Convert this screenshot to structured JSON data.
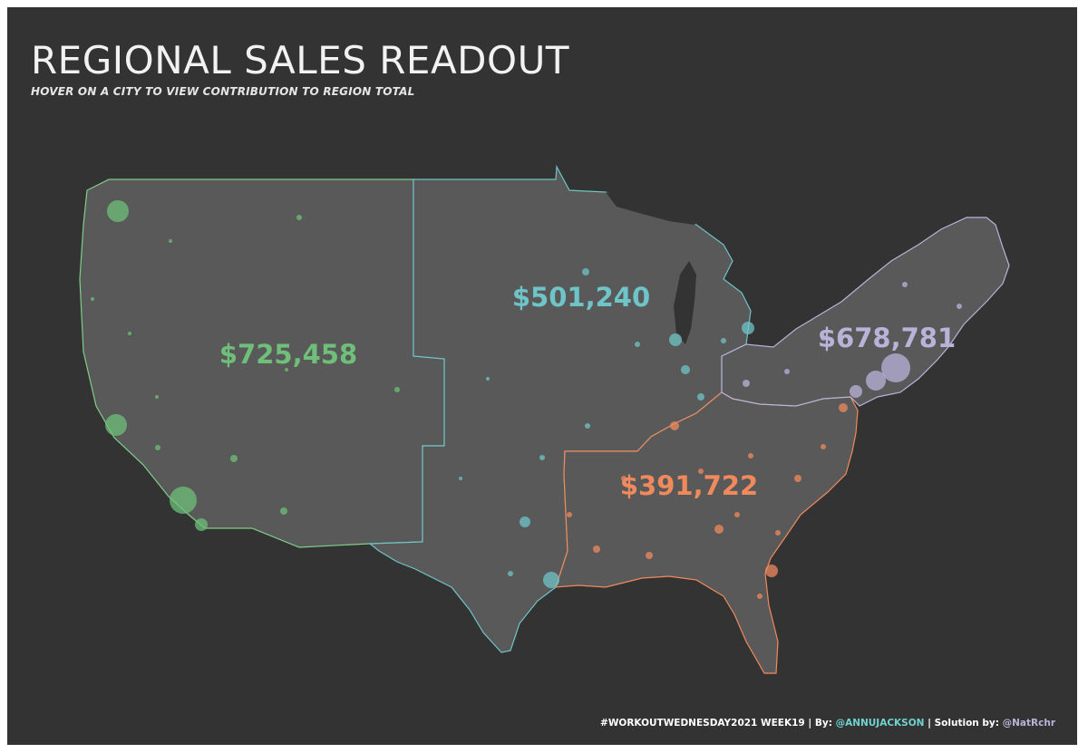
{
  "header": {
    "title": "REGIONAL SALES READOUT",
    "subtitle": "HOVER ON A CITY TO VIEW CONTRIBUTION TO REGION TOTAL"
  },
  "regions": [
    {
      "id": "west",
      "value_label": "$725,458",
      "color": "#6fbf7a"
    },
    {
      "id": "central",
      "value_label": "$501,240",
      "color": "#6fc4c8"
    },
    {
      "id": "east",
      "value_label": "$678,781",
      "color": "#b9b3d9"
    },
    {
      "id": "south",
      "value_label": "$391,722",
      "color": "#f08a5d"
    }
  ],
  "footer": {
    "hashtag": "#WORKOUTWEDNESDAY2021 WEEK19",
    "sep1": " | By: ",
    "author": "@ANNUJACKSON",
    "sep2": " | Solution by: ",
    "solver": "@NatRchr"
  },
  "colors": {
    "background": "#333333",
    "land": "#595959"
  }
}
